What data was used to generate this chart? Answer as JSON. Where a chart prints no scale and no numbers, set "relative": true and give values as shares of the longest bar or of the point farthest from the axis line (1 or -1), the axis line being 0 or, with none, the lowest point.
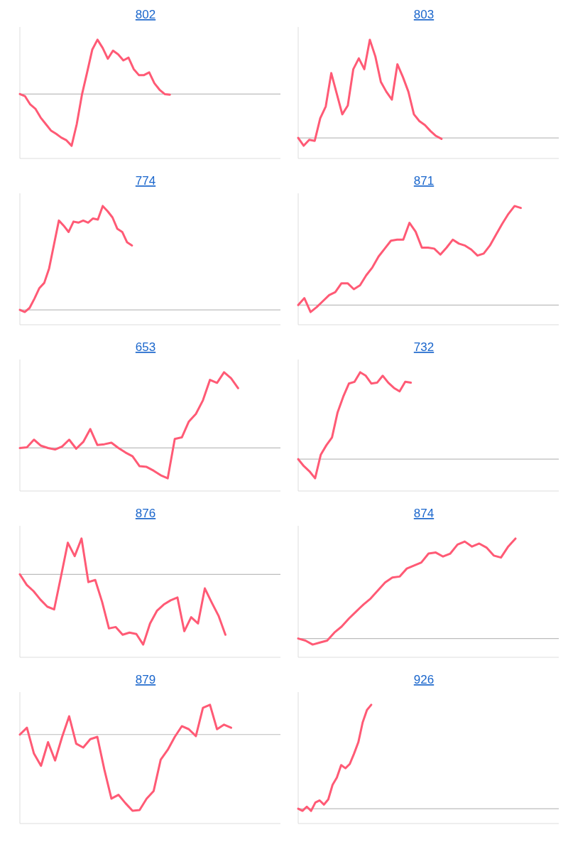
{
  "chart_data": [
    {
      "type": "line",
      "title": "802",
      "relative": true,
      "color": "#ff5a75",
      "categories": [
        null,
        null,
        null,
        null,
        null,
        null,
        null,
        null,
        null,
        null,
        null,
        null,
        null,
        null,
        null,
        null,
        null,
        null,
        null,
        null,
        null,
        null,
        null,
        null,
        null,
        null,
        null,
        null,
        null,
        null,
        null,
        null,
        null,
        null,
        null,
        null,
        null,
        null,
        null,
        null,
        null,
        null,
        null,
        null,
        null,
        null,
        null,
        null,
        null,
        null
      ],
      "values": [
        0,
        -0.04,
        -0.19,
        -0.27,
        -0.43,
        -0.55,
        -0.67,
        -0.73,
        -0.8,
        -0.85,
        -0.95,
        -0.55,
        -0.01,
        0.4,
        0.82,
        1,
        0.85,
        0.65,
        0.8,
        0.73,
        0.62,
        0.67,
        0.46,
        0.35,
        0.35,
        0.4,
        0.2,
        0.08,
        0,
        -0.01,
        null,
        null,
        null,
        null,
        null,
        null,
        null,
        null,
        null,
        null,
        null,
        null,
        null,
        null,
        null,
        null,
        null,
        null,
        null,
        null
      ]
    },
    {
      "type": "line",
      "title": "803",
      "relative": true,
      "color": "#ff5a75",
      "categories": [
        null,
        null,
        null,
        null,
        null,
        null,
        null,
        null,
        null,
        null,
        null,
        null,
        null,
        null,
        null,
        null,
        null,
        null,
        null,
        null,
        null,
        null,
        null,
        null,
        null,
        null,
        null,
        null,
        null,
        null,
        null,
        null,
        null,
        null,
        null,
        null,
        null,
        null,
        null,
        null,
        null,
        null,
        null,
        null,
        null,
        null,
        null
      ],
      "values": [
        0,
        -0.08,
        -0.02,
        -0.03,
        0.2,
        0.32,
        0.66,
        0.45,
        0.24,
        0.33,
        0.7,
        0.81,
        0.7,
        1,
        0.83,
        0.57,
        0.47,
        0.39,
        0.75,
        0.62,
        0.47,
        0.24,
        0.17,
        0.13,
        0.07,
        0.02,
        -0.01,
        null,
        null,
        null,
        null,
        null,
        null,
        null,
        null,
        null,
        null,
        null,
        null,
        null,
        null,
        null,
        null,
        null,
        null,
        null,
        null
      ]
    },
    {
      "type": "line",
      "title": "774",
      "relative": true,
      "color": "#ff5a75",
      "categories": [
        null,
        null,
        null,
        null,
        null,
        null,
        null,
        null,
        null,
        null,
        null,
        null,
        null,
        null,
        null,
        null,
        null,
        null,
        null,
        null,
        null,
        null,
        null,
        null,
        null,
        null,
        null,
        null,
        null,
        null,
        null,
        null,
        null,
        null,
        null,
        null,
        null,
        null,
        null,
        null,
        null,
        null,
        null,
        null,
        null,
        null,
        null,
        null,
        null,
        null,
        null,
        null,
        null
      ],
      "values": [
        0,
        -0.02,
        0.02,
        0.11,
        0.21,
        0.26,
        0.4,
        0.63,
        0.86,
        0.81,
        0.75,
        0.85,
        0.84,
        0.86,
        0.84,
        0.88,
        0.87,
        1,
        0.95,
        0.89,
        0.78,
        0.75,
        0.65,
        0.62,
        null,
        null,
        null,
        null,
        null,
        null,
        null,
        null,
        null,
        null,
        null,
        null,
        null,
        null,
        null,
        null,
        null,
        null,
        null,
        null,
        null,
        null,
        null,
        null,
        null,
        null,
        null,
        null,
        null
      ]
    },
    {
      "type": "line",
      "title": "871",
      "relative": true,
      "color": "#ff5a75",
      "categories": [
        null,
        null,
        null,
        null,
        null,
        null,
        null,
        null,
        null,
        null,
        null,
        null,
        null,
        null,
        null,
        null,
        null,
        null,
        null,
        null,
        null,
        null,
        null,
        null,
        null,
        null,
        null,
        null,
        null,
        null,
        null,
        null,
        null,
        null,
        null,
        null,
        null,
        null,
        null,
        null,
        null,
        null
      ],
      "values": [
        0,
        0.07,
        -0.07,
        -0.02,
        0.04,
        0.1,
        0.13,
        0.22,
        0.22,
        0.16,
        0.2,
        0.3,
        0.38,
        0.49,
        0.57,
        0.65,
        0.66,
        0.66,
        0.83,
        0.74,
        0.58,
        0.58,
        0.57,
        0.51,
        0.58,
        0.66,
        0.62,
        0.6,
        0.56,
        0.5,
        0.52,
        0.6,
        0.71,
        0.82,
        0.92,
        1,
        0.98,
        null,
        null,
        null,
        null,
        null
      ]
    },
    {
      "type": "line",
      "title": "653",
      "relative": true,
      "color": "#ff5a75",
      "categories": [
        null,
        null,
        null,
        null,
        null,
        null,
        null,
        null,
        null,
        null,
        null,
        null,
        null,
        null,
        null,
        null,
        null,
        null,
        null,
        null,
        null,
        null,
        null,
        null,
        null,
        null,
        null,
        null,
        null,
        null,
        null,
        null,
        null,
        null,
        null,
        null,
        null
      ],
      "values": [
        0,
        0.01,
        0.11,
        0.03,
        0,
        -0.02,
        0.02,
        0.11,
        -0.01,
        0.08,
        0.25,
        0.04,
        0.05,
        0.07,
        0,
        -0.06,
        -0.11,
        -0.24,
        -0.25,
        -0.3,
        -0.36,
        -0.4,
        0.12,
        0.14,
        0.35,
        0.45,
        0.63,
        0.9,
        0.86,
        1,
        0.92,
        0.79,
        null,
        null,
        null,
        null,
        null
      ]
    },
    {
      "type": "line",
      "title": "732",
      "relative": true,
      "color": "#ff5a75",
      "categories": [
        null,
        null,
        null,
        null,
        null,
        null,
        null,
        null,
        null,
        null,
        null,
        null,
        null,
        null,
        null,
        null,
        null,
        null,
        null,
        null,
        null,
        null,
        null,
        null,
        null,
        null,
        null,
        null,
        null,
        null,
        null,
        null,
        null,
        null,
        null,
        null,
        null,
        null,
        null,
        null,
        null,
        null,
        null,
        null,
        null,
        null
      ],
      "values": [
        0,
        -0.08,
        -0.14,
        -0.22,
        0.05,
        0.16,
        0.25,
        0.54,
        0.72,
        0.87,
        0.89,
        1,
        0.96,
        0.87,
        0.88,
        0.96,
        0.88,
        0.82,
        0.78,
        0.89,
        0.88,
        null,
        null,
        null,
        null,
        null,
        null,
        null,
        null,
        null,
        null,
        null,
        null,
        null,
        null,
        null,
        null,
        null,
        null,
        null,
        null,
        null,
        null,
        null,
        null,
        null
      ]
    },
    {
      "type": "line",
      "title": "876",
      "relative": true,
      "color": "#ff5a75",
      "categories": [
        null,
        null,
        null,
        null,
        null,
        null,
        null,
        null,
        null,
        null,
        null,
        null,
        null,
        null,
        null,
        null,
        null,
        null,
        null,
        null,
        null,
        null,
        null,
        null,
        null,
        null,
        null,
        null,
        null,
        null,
        null,
        null,
        null,
        null,
        null,
        null,
        null,
        null
      ],
      "values": [
        0,
        -0.15,
        -0.24,
        -0.36,
        -0.46,
        -0.5,
        -0.03,
        0.45,
        0.26,
        0.51,
        -0.11,
        -0.08,
        -0.39,
        -0.77,
        -0.75,
        -0.86,
        -0.83,
        -0.85,
        -1,
        -0.7,
        -0.52,
        -0.43,
        -0.37,
        -0.33,
        -0.81,
        -0.61,
        -0.7,
        -0.2,
        -0.4,
        -0.59,
        -0.86,
        null,
        null,
        null,
        null,
        null,
        null,
        null
      ]
    },
    {
      "type": "line",
      "title": "874",
      "relative": true,
      "color": "#ff5a75",
      "categories": [
        null,
        null,
        null,
        null,
        null,
        null,
        null,
        null,
        null,
        null,
        null,
        null,
        null,
        null,
        null,
        null,
        null,
        null,
        null,
        null,
        null,
        null,
        null,
        null,
        null,
        null,
        null,
        null,
        null,
        null,
        null,
        null,
        null,
        null,
        null,
        null
      ],
      "values": [
        0,
        -0.02,
        -0.06,
        -0.04,
        -0.02,
        0.06,
        0.12,
        0.2,
        0.27,
        0.34,
        0.4,
        0.48,
        0.56,
        0.61,
        0.62,
        0.7,
        0.73,
        0.76,
        0.85,
        0.86,
        0.82,
        0.85,
        0.94,
        0.97,
        0.92,
        0.95,
        0.91,
        0.83,
        0.81,
        0.92,
        1,
        null,
        null,
        null,
        null,
        null
      ]
    },
    {
      "type": "line",
      "title": "879",
      "relative": true,
      "color": "#ff5a75",
      "categories": [
        null,
        null,
        null,
        null,
        null,
        null,
        null,
        null,
        null,
        null,
        null,
        null,
        null,
        null,
        null,
        null,
        null,
        null,
        null,
        null,
        null,
        null,
        null,
        null,
        null,
        null,
        null,
        null,
        null,
        null,
        null,
        null,
        null,
        null,
        null,
        null,
        null
      ],
      "values": [
        0,
        0.09,
        -0.25,
        -0.41,
        -0.1,
        -0.34,
        -0.03,
        0.24,
        -0.12,
        -0.17,
        -0.06,
        -0.03,
        -0.46,
        -0.84,
        -0.79,
        -0.9,
        -1,
        -0.99,
        -0.84,
        -0.74,
        -0.33,
        -0.2,
        -0.03,
        0.11,
        0.07,
        -0.02,
        0.35,
        0.39,
        0.07,
        0.13,
        0.09,
        null,
        null,
        null,
        null,
        null,
        null
      ]
    },
    {
      "type": "line",
      "title": "926",
      "relative": true,
      "color": "#ff5a75",
      "categories": [
        null,
        null,
        null,
        null,
        null,
        null,
        null,
        null,
        null,
        null,
        null,
        null,
        null,
        null,
        null,
        null,
        null,
        null,
        null,
        null,
        null,
        null,
        null,
        null,
        null,
        null,
        null,
        null,
        null,
        null,
        null,
        null,
        null,
        null,
        null,
        null,
        null,
        null,
        null,
        null,
        null,
        null,
        null,
        null,
        null,
        null,
        null,
        null,
        null,
        null,
        null,
        null,
        null,
        null,
        null,
        null,
        null,
        null,
        null,
        null
      ],
      "values": [
        0,
        -0.02,
        0.02,
        -0.02,
        0.06,
        0.08,
        0.04,
        0.09,
        0.23,
        0.3,
        0.42,
        0.39,
        0.43,
        0.53,
        0.64,
        0.83,
        0.95,
        1,
        null,
        null,
        null,
        null,
        null,
        null,
        null,
        null,
        null,
        null,
        null,
        null,
        null,
        null,
        null,
        null,
        null,
        null,
        null,
        null,
        null,
        null,
        null,
        null,
        null,
        null,
        null,
        null,
        null,
        null,
        null,
        null,
        null,
        null,
        null,
        null,
        null,
        null,
        null,
        null,
        null,
        null
      ]
    }
  ]
}
